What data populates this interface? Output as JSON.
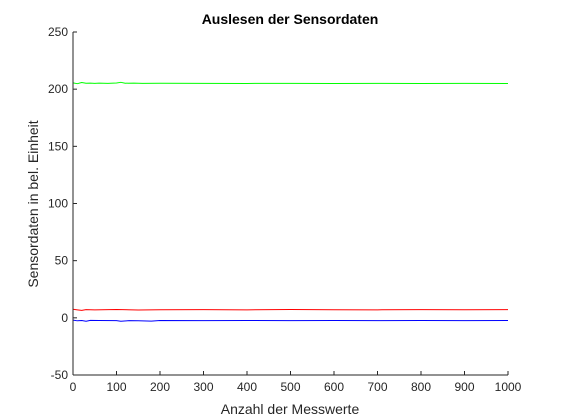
{
  "chart_data": {
    "type": "line",
    "title": "Auslesen der Sensordaten",
    "xlabel": "Anzahl der Messwerte",
    "ylabel": "Sensordaten in bel. Einheit",
    "xlim": [
      0,
      1000
    ],
    "ylim": [
      -50,
      250
    ],
    "xticks": [
      0,
      100,
      200,
      300,
      400,
      500,
      600,
      700,
      800,
      900,
      1000
    ],
    "yticks": [
      -50,
      0,
      50,
      100,
      150,
      200,
      250
    ],
    "grid": false,
    "legend": "none",
    "series": [
      {
        "color": "#00ff00",
        "x": [
          0,
          10,
          20,
          30,
          40,
          50,
          60,
          80,
          100,
          110,
          120,
          140,
          160,
          200,
          300,
          400,
          500,
          600,
          700,
          800,
          900,
          1000
        ],
        "y": [
          205.5,
          204.8,
          205.8,
          205.2,
          205.3,
          205.1,
          205.3,
          205.1,
          205.4,
          206.0,
          205.2,
          205.3,
          205.1,
          205.2,
          205.1,
          205.0,
          205.1,
          205.0,
          205.1,
          205.0,
          205.1,
          205.0
        ]
      },
      {
        "color": "#ff0000",
        "x": [
          0,
          10,
          20,
          30,
          50,
          100,
          150,
          200,
          300,
          400,
          500,
          600,
          700,
          800,
          900,
          1000
        ],
        "y": [
          7.5,
          7.0,
          6.5,
          7.2,
          7.0,
          7.3,
          6.9,
          7.1,
          7.2,
          7.0,
          7.3,
          7.1,
          7.0,
          7.2,
          7.1,
          7.2
        ]
      },
      {
        "color": "#0000ff",
        "x": [
          0,
          10,
          20,
          30,
          40,
          60,
          100,
          110,
          130,
          150,
          180,
          200,
          300,
          400,
          500,
          600,
          700,
          800,
          900,
          1000
        ],
        "y": [
          -2.0,
          -2.6,
          -2.3,
          -3.0,
          -2.2,
          -2.3,
          -2.4,
          -3.0,
          -2.4,
          -2.5,
          -2.9,
          -2.3,
          -2.4,
          -2.3,
          -2.4,
          -2.3,
          -2.4,
          -2.3,
          -2.4,
          -2.3
        ]
      }
    ]
  }
}
